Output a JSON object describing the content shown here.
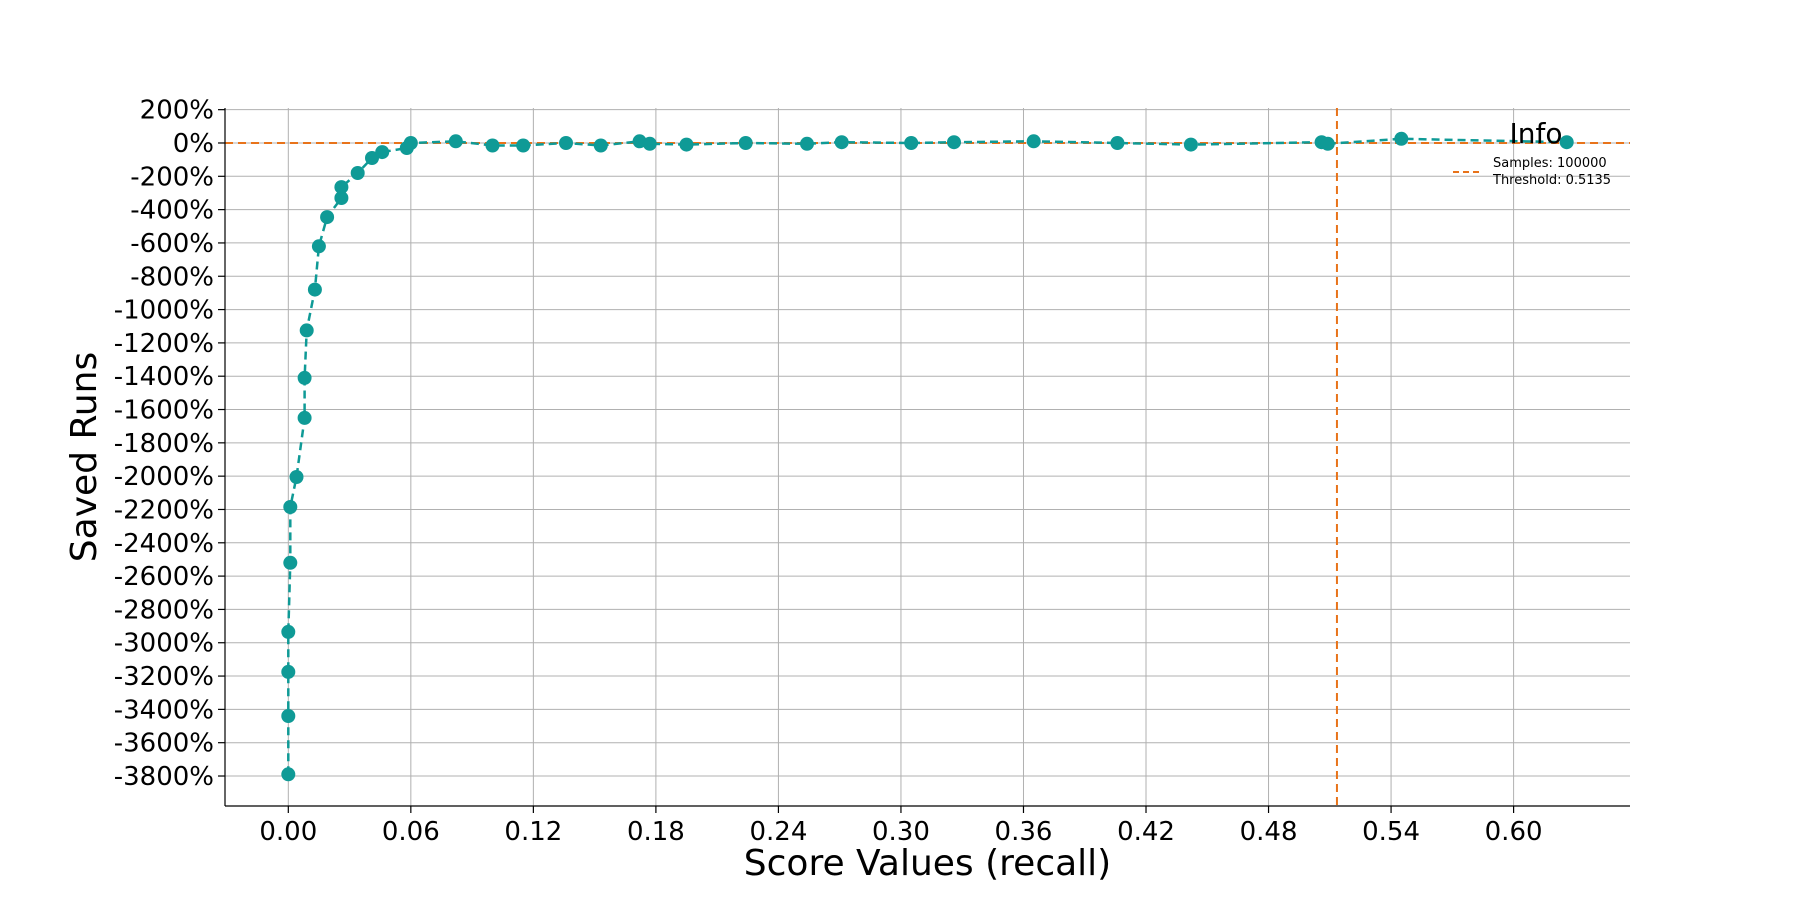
{
  "chart_data": {
    "type": "line",
    "xlabel": "Score Values (recall)",
    "ylabel": "Saved Runs",
    "xlim": [
      -0.031,
      0.657
    ],
    "ylim": [
      -3980,
      210
    ],
    "x_ticks": [
      0.0,
      0.06,
      0.12,
      0.18,
      0.24,
      0.3,
      0.36,
      0.42,
      0.48,
      0.54,
      0.6
    ],
    "x_tick_labels": [
      "0.00",
      "0.06",
      "0.12",
      "0.18",
      "0.24",
      "0.30",
      "0.36",
      "0.42",
      "0.48",
      "0.54",
      "0.60"
    ],
    "y_ticks": [
      200,
      0,
      -200,
      -400,
      -600,
      -800,
      -1000,
      -1200,
      -1400,
      -1600,
      -1800,
      -2000,
      -2200,
      -2400,
      -2600,
      -2800,
      -3000,
      -3200,
      -3400,
      -3600,
      -3800
    ],
    "y_tick_labels": [
      "200%",
      "0%",
      "-200%",
      "-400%",
      "-600%",
      "-800%",
      "-1000%",
      "-1200%",
      "-1400%",
      "-1600%",
      "-1800%",
      "-2000%",
      "-2200%",
      "-2400%",
      "-2600%",
      "-2800%",
      "-3000%",
      "-3200%",
      "-3400%",
      "-3600%",
      "-3800%"
    ],
    "grid": true,
    "series": [
      {
        "color": "#0f9a96",
        "style": "dashed-with-markers",
        "points": [
          [
            0.0,
            -3790
          ],
          [
            0.0,
            -3440
          ],
          [
            0.0,
            -3175
          ],
          [
            0.0,
            -2935
          ],
          [
            0.001,
            -2520
          ],
          [
            0.001,
            -2185
          ],
          [
            0.004,
            -2005
          ],
          [
            0.008,
            -1650
          ],
          [
            0.008,
            -1410
          ],
          [
            0.009,
            -1125
          ],
          [
            0.013,
            -880
          ],
          [
            0.015,
            -620
          ],
          [
            0.019,
            -445
          ],
          [
            0.026,
            -330
          ],
          [
            0.026,
            -265
          ],
          [
            0.034,
            -180
          ],
          [
            0.041,
            -90
          ],
          [
            0.046,
            -55
          ],
          [
            0.058,
            -30
          ],
          [
            0.06,
            0
          ],
          [
            0.082,
            10
          ],
          [
            0.1,
            -15
          ],
          [
            0.115,
            -15
          ],
          [
            0.136,
            0
          ],
          [
            0.153,
            -15
          ],
          [
            0.172,
            10
          ],
          [
            0.177,
            -5
          ],
          [
            0.195,
            -10
          ],
          [
            0.224,
            0
          ],
          [
            0.254,
            -5
          ],
          [
            0.271,
            5
          ],
          [
            0.305,
            0
          ],
          [
            0.326,
            5
          ],
          [
            0.365,
            10
          ],
          [
            0.406,
            0
          ],
          [
            0.442,
            -10
          ],
          [
            0.506,
            5
          ],
          [
            0.509,
            -5
          ],
          [
            0.545,
            25
          ],
          [
            0.626,
            5
          ]
        ]
      }
    ],
    "reference_lines": [
      {
        "orientation": "horizontal",
        "value": 0,
        "color": "#e8731a",
        "style": "dashed"
      },
      {
        "orientation": "vertical",
        "value": 0.5135,
        "color": "#e8731a",
        "style": "dashed"
      }
    ],
    "legend": {
      "title": "Info",
      "placement": "top-right",
      "entries": [
        {
          "label": "Samples: 100000",
          "marker": "none"
        },
        {
          "label": "Threshold: 0.5135",
          "marker": "dashed-line",
          "color": "#e8731a"
        }
      ]
    }
  }
}
